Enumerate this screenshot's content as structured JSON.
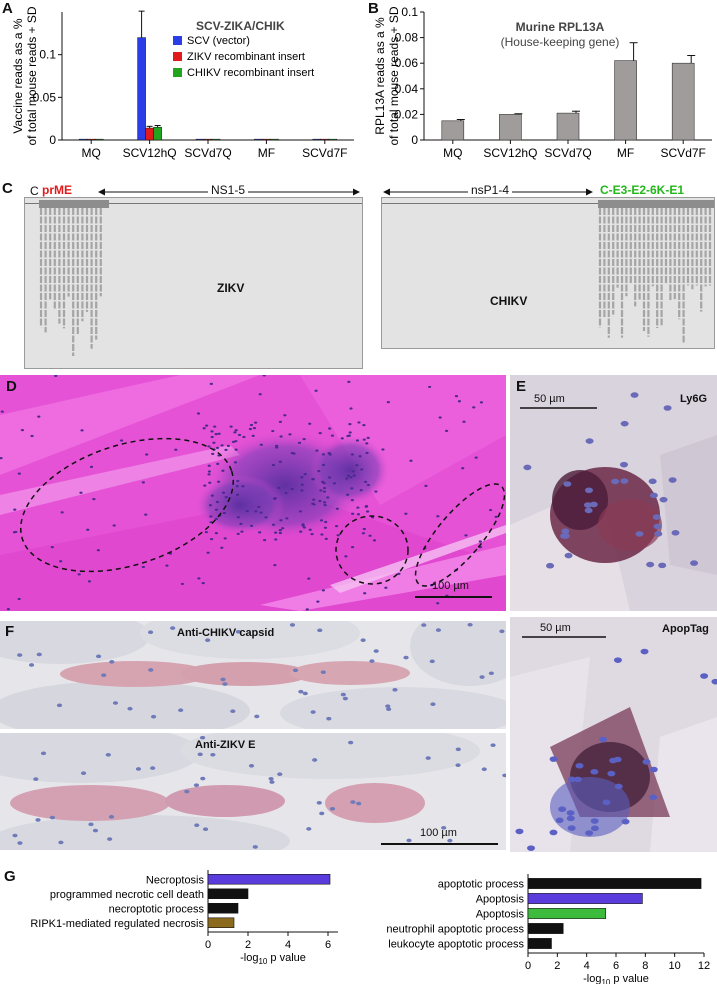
{
  "panels": {
    "a": "A",
    "b": "B",
    "c": "C",
    "d": "D",
    "e": "E",
    "f": "F",
    "g": "G"
  },
  "chart_data": [
    {
      "id": "A",
      "type": "bar",
      "title": "SCV-ZIKA/CHIK",
      "ylabel_line1": "Vaccine reads as a %",
      "ylabel_line2": "of total mouse reads + SD",
      "ylim": [
        0,
        0.15
      ],
      "yticks": [
        0,
        0.05,
        0.1
      ],
      "ytick_labels": [
        "0",
        "0.05",
        "0.1"
      ],
      "categories": [
        "MQ",
        "SCV12hQ",
        "SCVd7Q",
        "MF",
        "SCVd7F"
      ],
      "series": [
        {
          "name": "SCV (vector)",
          "color": "#2a3ee8",
          "values": [
            0.001,
            0.12,
            0.001,
            0.001,
            0.001
          ],
          "sd": [
            0,
            0.031,
            0,
            0,
            0
          ]
        },
        {
          "name": "ZIKV recombinant insert",
          "color": "#e11b1b",
          "values": [
            0.001,
            0.014,
            0.001,
            0.001,
            0.001
          ],
          "sd": [
            0,
            0.002,
            0,
            0,
            0
          ]
        },
        {
          "name": "CHIKV recombinant insert",
          "color": "#22a41f",
          "values": [
            0.001,
            0.015,
            0.001,
            0.001,
            0.001
          ],
          "sd": [
            0,
            0.002,
            0,
            0,
            0
          ]
        }
      ],
      "legend_position": "top-right"
    },
    {
      "id": "B",
      "type": "bar",
      "title": "Murine RPL13A",
      "subtitle": "(House-keeping gene)",
      "ylabel_line1": "RPL13A reads as a %",
      "ylabel_line2": "of total mouse reads + SD",
      "ylim": [
        0,
        0.1
      ],
      "yticks": [
        0,
        0.02,
        0.04,
        0.06,
        0.08,
        0.1
      ],
      "ytick_labels": [
        "0",
        "0.02",
        "0.04",
        "0.06",
        "0.08",
        "0.1"
      ],
      "categories": [
        "MQ",
        "SCV12hQ",
        "SCVd7Q",
        "MF",
        "SCVd7F"
      ],
      "values": [
        0.015,
        0.02,
        0.021,
        0.062,
        0.06
      ],
      "sd": [
        0.001,
        0.0005,
        0.0015,
        0.014,
        0.006
      ],
      "color": "#a09c9c"
    },
    {
      "id": "G1",
      "type": "bar",
      "orientation": "horizontal",
      "xlabel": "-log",
      "xlabel_sub": "10",
      "xlabel_tail": " p value",
      "xlim": [
        0,
        6.5
      ],
      "xticks": [
        0,
        2,
        4,
        6
      ],
      "xtick_labels": [
        "0",
        "2",
        "4",
        "6"
      ],
      "categories": [
        "Necroptosis",
        "programmed necrotic cell death",
        "necroptotic process",
        "RIPK1-mediated regulated necrosis"
      ],
      "values": [
        6.1,
        2.0,
        1.5,
        1.3
      ],
      "colors": [
        "#5a3cdc",
        "#111111",
        "#111111",
        "#8b6a1d"
      ]
    },
    {
      "id": "G2",
      "type": "bar",
      "orientation": "horizontal",
      "xlabel": "-log",
      "xlabel_sub": "10",
      "xlabel_tail": " p value",
      "xlim": [
        0,
        12
      ],
      "xticks": [
        0,
        2,
        4,
        6,
        8,
        10,
        12
      ],
      "xtick_labels": [
        "0",
        "2",
        "4",
        "6",
        "8",
        "10",
        "12"
      ],
      "categories": [
        "apoptotic process",
        "Apoptosis",
        "Apoptosis",
        "neutrophil apoptotic process",
        "leukocyte apoptotic process"
      ],
      "values": [
        11.8,
        7.8,
        5.3,
        2.4,
        1.6
      ],
      "colors": [
        "#111111",
        "#5a3cdc",
        "#3dbb3d",
        "#111111",
        "#111111"
      ]
    }
  ],
  "panelC": {
    "left_start": "C",
    "left_gene": "prME",
    "left_region": "NS1-5",
    "left_label": "ZIKV",
    "right_region": "nsP1-4",
    "right_gene": "C-E3-E2-6K-E1",
    "right_label": "CHIKV",
    "colors": {
      "prME": "#e11b1b",
      "structural": "#22b81a"
    }
  },
  "panelD": {
    "scale": "100 µm"
  },
  "panelE": {
    "top_title": "Ly6G",
    "top_scale": "50 µm",
    "bottom_title": "ApopTag",
    "bottom_scale": "50 µm"
  },
  "panelF": {
    "top_title": "Anti-CHIKV capsid",
    "bottom_title": "Anti-ZIKV E",
    "scale": "100 µm"
  }
}
